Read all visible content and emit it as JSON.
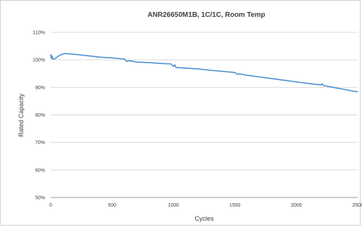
{
  "chart_data": {
    "type": "line",
    "title": "ANR26650M1B, 1C/1C, Room Temp",
    "xlabel": "Cycles",
    "ylabel": "Rated Capacity",
    "xlim": [
      0,
      2500
    ],
    "ylim": [
      50,
      110
    ],
    "x_ticks": [
      "0",
      "500",
      "1000",
      "1500",
      "2000",
      "2500"
    ],
    "y_ticks": [
      "50%",
      "60%",
      "70%",
      "80%",
      "90%",
      "100%",
      "110%"
    ],
    "grid": true,
    "legend": "none",
    "color": "#4a8fd0",
    "series": [
      {
        "x": [
          0,
          5,
          10,
          20,
          40,
          60,
          80,
          100,
          120,
          150,
          200,
          300,
          400,
          500,
          600,
          620,
          640,
          700,
          800,
          900,
          980,
          1000,
          1010,
          1020,
          1100,
          1200,
          1300,
          1400,
          1500,
          1520,
          1540,
          1600,
          1700,
          1800,
          1900,
          2000,
          2100,
          2200,
          2210,
          2220,
          2300,
          2400,
          2450,
          2500
        ],
        "y": [
          102,
          100.5,
          101.5,
          100.2,
          100.6,
          101.3,
          101.8,
          102.1,
          102.3,
          102.2,
          102,
          101.5,
          101,
          100.7,
          100.3,
          99.4,
          99.7,
          99.2,
          99,
          98.7,
          98.5,
          97.6,
          98.2,
          97.2,
          97,
          96.7,
          96.2,
          95.8,
          95.4,
          94.7,
          94.9,
          94.4,
          93.8,
          93.2,
          92.6,
          92,
          91.4,
          90.9,
          91.3,
          90.7,
          90,
          89.2,
          88.7,
          88.4
        ]
      }
    ]
  }
}
